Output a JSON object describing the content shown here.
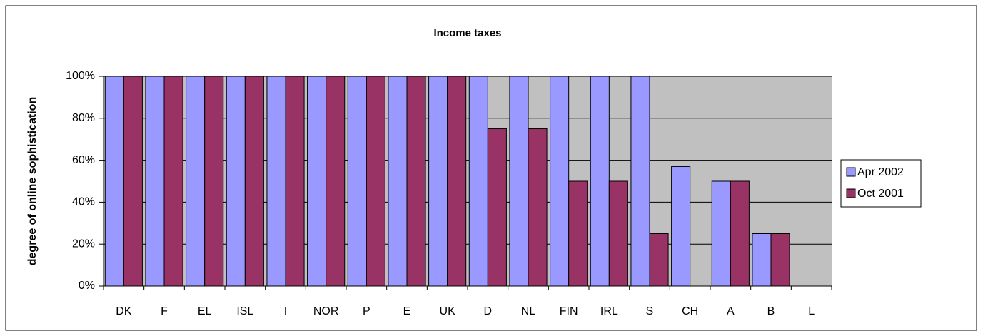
{
  "chart_data": {
    "type": "bar",
    "title": "Income taxes",
    "y_label": "degree of online sophistication",
    "categories": [
      "DK",
      "F",
      "EL",
      "ISL",
      "I",
      "NOR",
      "P",
      "E",
      "UK",
      "D",
      "NL",
      "FIN",
      "IRL",
      "S",
      "CH",
      "A",
      "B",
      "L"
    ],
    "series": [
      {
        "name": "Apr 2002",
        "color": "#9999ff",
        "values": [
          100,
          100,
          100,
          100,
          100,
          100,
          100,
          100,
          100,
          100,
          100,
          100,
          100,
          100,
          57,
          50,
          25,
          0
        ]
      },
      {
        "name": "Oct 2001",
        "color": "#993366",
        "values": [
          100,
          100,
          100,
          100,
          100,
          100,
          100,
          100,
          100,
          75,
          75,
          50,
          50,
          25,
          0,
          50,
          25,
          0
        ]
      }
    ],
    "ylim": [
      0,
      100
    ],
    "yticks": [
      {
        "value": 0,
        "label": "0%"
      },
      {
        "value": 20,
        "label": "20%"
      },
      {
        "value": 40,
        "label": "40%"
      },
      {
        "value": 60,
        "label": "60%"
      },
      {
        "value": 80,
        "label": "80%"
      },
      {
        "value": 100,
        "label": "100%"
      }
    ],
    "grid": true,
    "legend": "right"
  }
}
